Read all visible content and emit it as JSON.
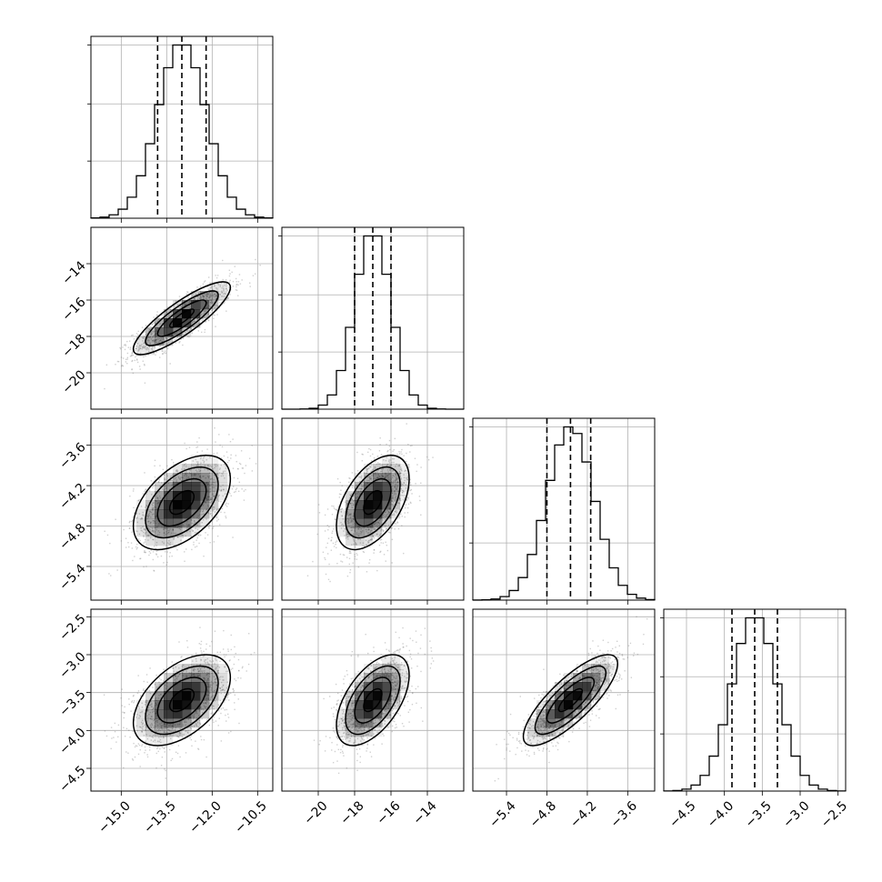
{
  "chart_data": {
    "type": "corner",
    "parameters": [
      {
        "index": 0,
        "mean": -13.0,
        "sd": 0.8,
        "quantiles": [
          -13.8,
          -13.0,
          -12.2
        ],
        "range": [
          -16.0,
          -10.0
        ]
      },
      {
        "index": 1,
        "mean": -17.0,
        "sd": 1.0,
        "quantiles": [
          -18.0,
          -17.0,
          -16.0
        ],
        "range": [
          -22.0,
          -12.0
        ]
      },
      {
        "index": 2,
        "mean": -4.45,
        "sd": 0.35,
        "quantiles": [
          -4.8,
          -4.45,
          -4.15
        ],
        "range": [
          -5.9,
          -3.2
        ]
      },
      {
        "index": 3,
        "mean": -3.6,
        "sd": 0.3,
        "quantiles": [
          -3.9,
          -3.6,
          -3.3
        ],
        "range": [
          -4.8,
          -2.4
        ]
      }
    ],
    "correlations": {
      "1-0": 0.85,
      "2-0": 0.5,
      "2-1": 0.5,
      "3-0": 0.5,
      "3-1": 0.55,
      "3-2": 0.8
    },
    "ticks": [
      {
        "values": [
          -15.0,
          -13.5,
          -12.0,
          -10.5
        ],
        "labels": [
          "−15.0",
          "−13.5",
          "−12.0",
          "−10.5"
        ]
      },
      {
        "values": [
          -20,
          -18,
          -16,
          -14
        ],
        "labels": [
          "−20",
          "−18",
          "−16",
          "−14"
        ]
      },
      {
        "values": [
          -5.4,
          -4.8,
          -4.2,
          -3.6
        ],
        "labels": [
          "−5.4",
          "−4.8",
          "−4.2",
          "−3.6"
        ]
      },
      {
        "values": [
          -4.5,
          -4.0,
          -3.5,
          -3.0,
          -2.5
        ],
        "labels": [
          "−4.5",
          "−4.0",
          "−3.5",
          "−3.0",
          "−2.5"
        ]
      }
    ],
    "hist_bins": 20,
    "contour_levels_sigma": [
      0.5,
      1.0,
      1.5,
      2.0
    ],
    "grid": true,
    "colors": {
      "frame": "#000000",
      "grid": "#b0b0b0",
      "points": "#777777",
      "density": "#000000"
    }
  }
}
